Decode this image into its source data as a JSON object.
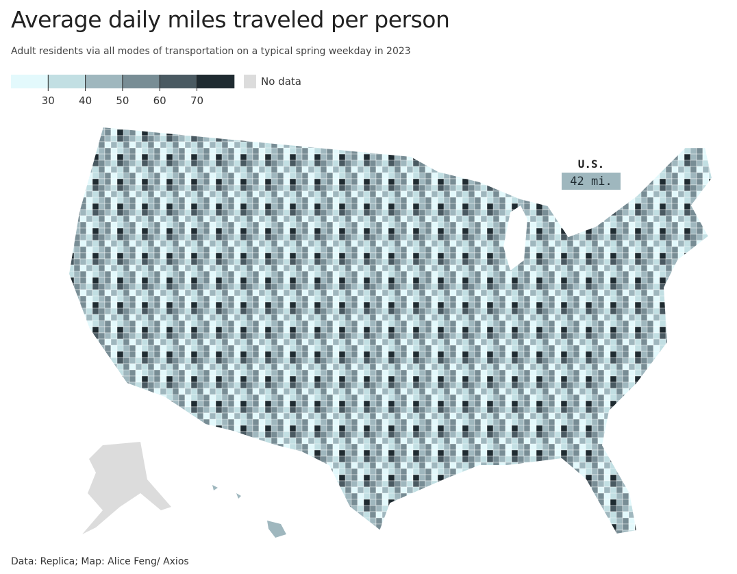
{
  "header": {
    "title": "Average daily miles traveled per person",
    "subtitle": "Adult residents via all modes of transportation on a typical spring weekday in 2023"
  },
  "legend": {
    "colors": [
      "#e3f9fc",
      "#c2dfe3",
      "#9fb7be",
      "#788d95",
      "#4a5a62",
      "#1f2b31"
    ],
    "ticks": [
      30,
      40,
      50,
      60,
      70
    ],
    "no_data": {
      "label": "No data",
      "color": "#dcdcdc"
    }
  },
  "annotation": {
    "label": "U.S.",
    "value_label": "42 mi."
  },
  "source": "Data: Replica; Map: Alice Feng/ Axios"
}
